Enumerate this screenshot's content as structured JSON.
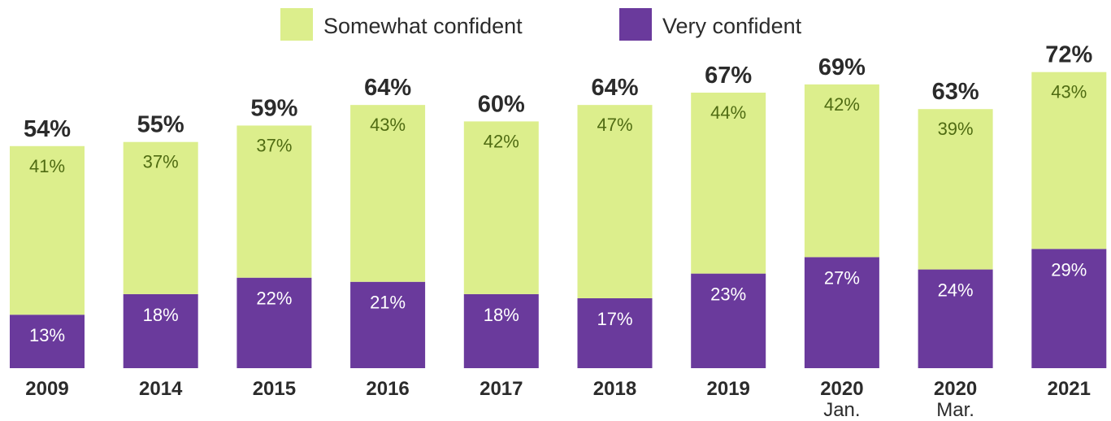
{
  "chart_data": {
    "type": "bar",
    "stacked": true,
    "categories": [
      "2009",
      "2014",
      "2015",
      "2016",
      "2017",
      "2018",
      "2019",
      "2020\nJan.",
      "2020\nMar.",
      "2021"
    ],
    "series": [
      {
        "name": "Very confident",
        "values": [
          13,
          18,
          22,
          21,
          18,
          17,
          23,
          27,
          24,
          29
        ],
        "color": "#6a3a9c"
      },
      {
        "name": "Somewhat confident",
        "values": [
          41,
          37,
          37,
          43,
          42,
          47,
          44,
          42,
          39,
          43
        ],
        "color": "#dcee8c"
      }
    ],
    "totals": [
      "54%",
      "55%",
      "59%",
      "64%",
      "60%",
      "64%",
      "67%",
      "69%",
      "63%",
      "72%"
    ],
    "legend": [
      "Somewhat confident",
      "Very confident"
    ],
    "legend_position": "top",
    "grid": false,
    "ylim": [
      0,
      72
    ]
  }
}
